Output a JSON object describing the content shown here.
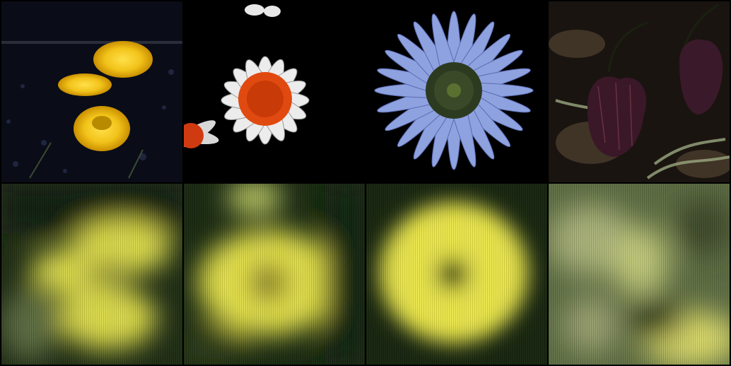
{
  "grid": {
    "rows": 2,
    "cols": 4
  },
  "originals": [
    {
      "subject": "coltsfoot-flowers-icon",
      "accent": "#f2c31a"
    },
    {
      "subject": "daisy-icon",
      "accent": "#e04a10"
    },
    {
      "subject": "blue-daisy-icon",
      "accent": "#8ea2e0"
    },
    {
      "subject": "fritillary-bells-icon",
      "accent": "#4a2030"
    }
  ],
  "reconstructions": [
    {
      "accent": "#d9d84a"
    },
    {
      "accent": "#e3e04a"
    },
    {
      "accent": "#e8e44a"
    },
    {
      "accent": "#b8c070"
    }
  ]
}
